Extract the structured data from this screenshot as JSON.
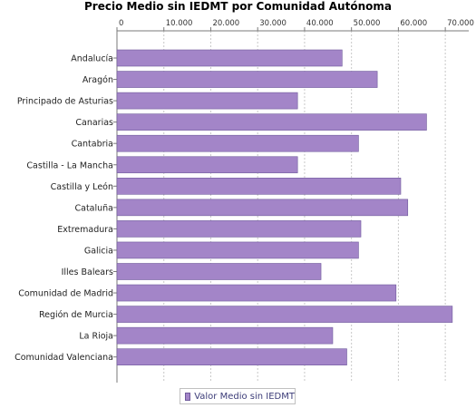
{
  "chart_data": {
    "type": "bar",
    "orientation": "horizontal",
    "title": "Precio Medio sin IEDMT por Comunidad Autónoma",
    "xlabel": "",
    "ylabel": "",
    "xlim": [
      0,
      75000
    ],
    "x_ticks": [
      0,
      10000,
      20000,
      30000,
      40000,
      50000,
      60000,
      70000
    ],
    "x_tick_labels": [
      "0",
      "10.000",
      "20.000",
      "30.000",
      "40.000",
      "50.000",
      "60.000",
      "70.000"
    ],
    "x_axis_position": "top",
    "grid": "vertical dashed",
    "legend_placement": "bottom-center",
    "categories": [
      "Andalucía",
      "Aragón",
      "Principado de Asturias",
      "Canarias",
      "Cantabria",
      "Castilla - La Mancha",
      "Castilla y León",
      "Cataluña",
      "Extremadura",
      "Galicia",
      "Illes Balears",
      "Comunidad de Madrid",
      "Región de Murcia",
      "La Rioja",
      "Comunidad Valenciana"
    ],
    "series": [
      {
        "name": "Valor Medio sin IEDMT",
        "color": "#a385c8",
        "values": [
          48000,
          55500,
          38500,
          66000,
          51500,
          38500,
          60500,
          62000,
          52000,
          51500,
          43500,
          59500,
          71500,
          46000,
          49000
        ]
      }
    ]
  },
  "colors": {
    "bar_fill": "#a385c8",
    "bar_stroke": "#6f5a9c",
    "grid": "#c8c8c8",
    "axis": "#7a7a7a",
    "legend_text": "#3c3c78"
  }
}
